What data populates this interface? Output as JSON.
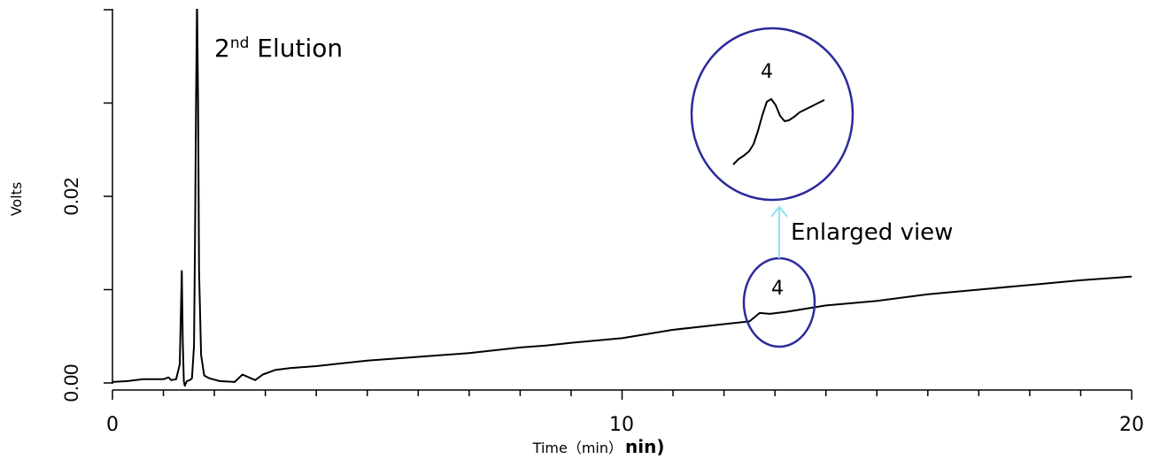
{
  "chart_data": {
    "type": "line",
    "title": "",
    "xlabel": "Time（min）",
    "xlabel_suffix": "nin)",
    "ylabel": "Volts",
    "xlim": [
      0,
      20
    ],
    "ylim": [
      -0.0005,
      0.04
    ],
    "x_ticks": [
      "0",
      "10",
      "20"
    ],
    "y_ticks": [
      "0.00",
      "0.02"
    ],
    "annotations": {
      "elution": {
        "main": "2",
        "sup": "nd",
        "rest": " Elution"
      },
      "peak_label": "4",
      "zoom_peak_label": "4",
      "enlarged_label": "Enlarged view"
    },
    "colors": {
      "trace": "#000000",
      "circle": "#2b2a9c",
      "arrow": "#8fe3ee"
    },
    "series": [
      {
        "x": [
          0,
          0.3,
          0.6,
          1.0,
          1.1,
          1.15,
          1.25,
          1.32,
          1.36,
          1.38,
          1.4,
          1.42,
          1.46,
          1.52,
          1.56,
          1.6,
          1.62,
          1.64,
          1.66,
          1.68,
          1.7,
          1.74,
          1.8,
          1.9,
          2.1,
          2.4,
          2.55,
          2.8,
          2.95,
          3.2,
          3.5,
          4,
          5,
          5.5,
          6,
          7,
          8,
          8.5,
          9,
          10,
          11,
          12,
          12.5,
          12.7,
          12.9,
          13.2,
          14,
          15,
          16,
          17,
          18,
          19,
          20
        ],
        "y": [
          0.0001,
          0.0002,
          0.0004,
          0.0004,
          0.0006,
          0.0003,
          0.0004,
          0.002,
          0.012,
          0.0045,
          0.0002,
          -0.0003,
          0.0002,
          0.0003,
          0.0005,
          0.004,
          0.015,
          0.03,
          0.041,
          0.03,
          0.012,
          0.003,
          0.0008,
          0.0005,
          0.0002,
          0.0001,
          0.0009,
          0.0003,
          0.0009,
          0.0014,
          0.0016,
          0.0018,
          0.0024,
          0.0026,
          0.0028,
          0.0032,
          0.0038,
          0.004,
          0.0043,
          0.0048,
          0.0057,
          0.0063,
          0.0066,
          0.0075,
          0.0074,
          0.0076,
          0.0083,
          0.0088,
          0.0095,
          0.01,
          0.0105,
          0.011,
          0.0114
        ]
      }
    ]
  }
}
